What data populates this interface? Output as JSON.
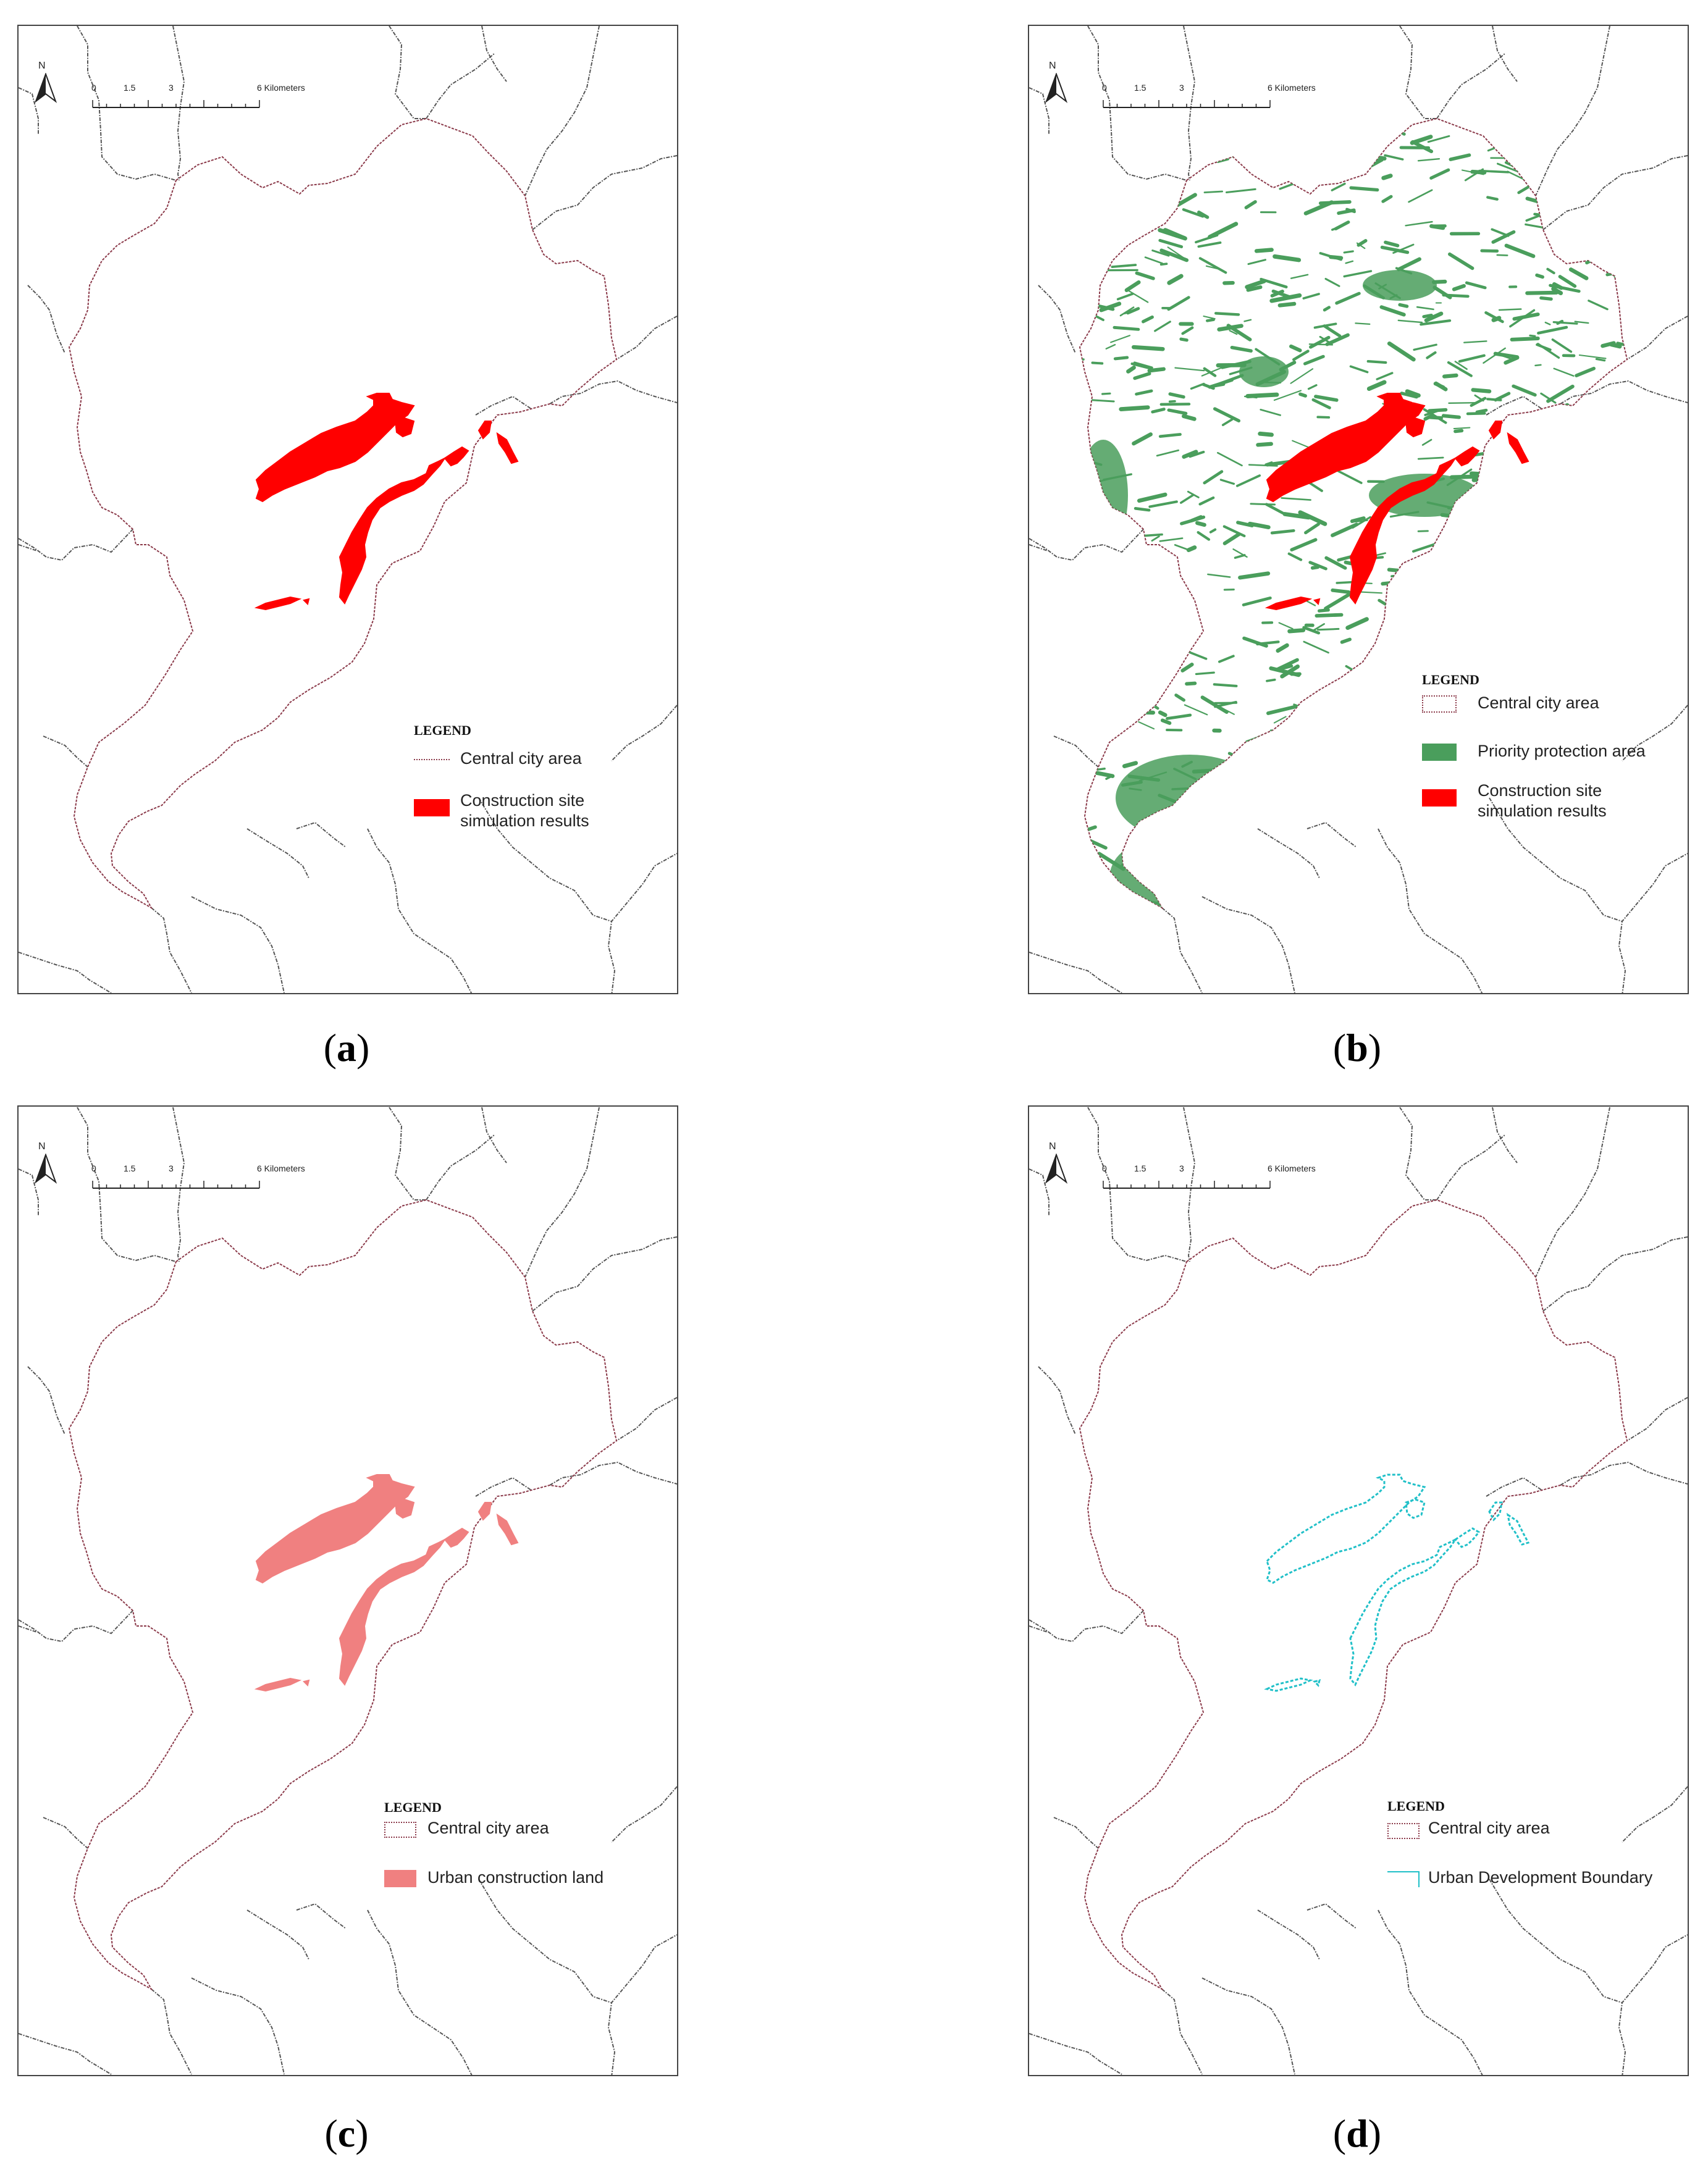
{
  "panels": [
    {
      "id": "a",
      "caption": "a",
      "legend": {
        "title": "LEGEND",
        "items": [
          {
            "label": "Central city area",
            "type": "line",
            "color": "#8b3a4a"
          },
          {
            "label": "Construction site simulation results",
            "type": "fill",
            "color": "#ff0000"
          }
        ]
      },
      "scalebar": {
        "labels": [
          "0",
          "1.5",
          "3",
          "6 Kilometers"
        ]
      },
      "north": "N"
    },
    {
      "id": "b",
      "caption": "b",
      "legend": {
        "title": "LEGEND",
        "items": [
          {
            "label": "Central city area",
            "type": "box",
            "color": "#8b3a4a"
          },
          {
            "label": "Priority protection area",
            "type": "fill",
            "color": "#4a9e5c"
          },
          {
            "label": "Construction site simulation results",
            "type": "fill",
            "color": "#ff0000"
          }
        ]
      },
      "scalebar": {
        "labels": [
          "0",
          "1.5",
          "3",
          "6 Kilometers"
        ]
      },
      "north": "N"
    },
    {
      "id": "c",
      "caption": "c",
      "legend": {
        "title": "LEGEND",
        "items": [
          {
            "label": "Central city area",
            "type": "box",
            "color": "#8b3a4a"
          },
          {
            "label": "Urban construction land",
            "type": "fill",
            "color": "#f08080"
          }
        ]
      },
      "scalebar": {
        "labels": [
          "0",
          "1.5",
          "3",
          "6 Kilometers"
        ]
      },
      "north": "N"
    },
    {
      "id": "d",
      "caption": "d",
      "legend": {
        "title": "LEGEND",
        "items": [
          {
            "label": "Central city area",
            "type": "box",
            "color": "#8b3a4a"
          },
          {
            "label": "Urban Development Boundary",
            "type": "cyanline",
            "color": "#20c0c8"
          }
        ]
      },
      "scalebar": {
        "labels": [
          "0",
          "1.5",
          "3",
          "6 Kilometers"
        ]
      },
      "north": "N"
    }
  ]
}
